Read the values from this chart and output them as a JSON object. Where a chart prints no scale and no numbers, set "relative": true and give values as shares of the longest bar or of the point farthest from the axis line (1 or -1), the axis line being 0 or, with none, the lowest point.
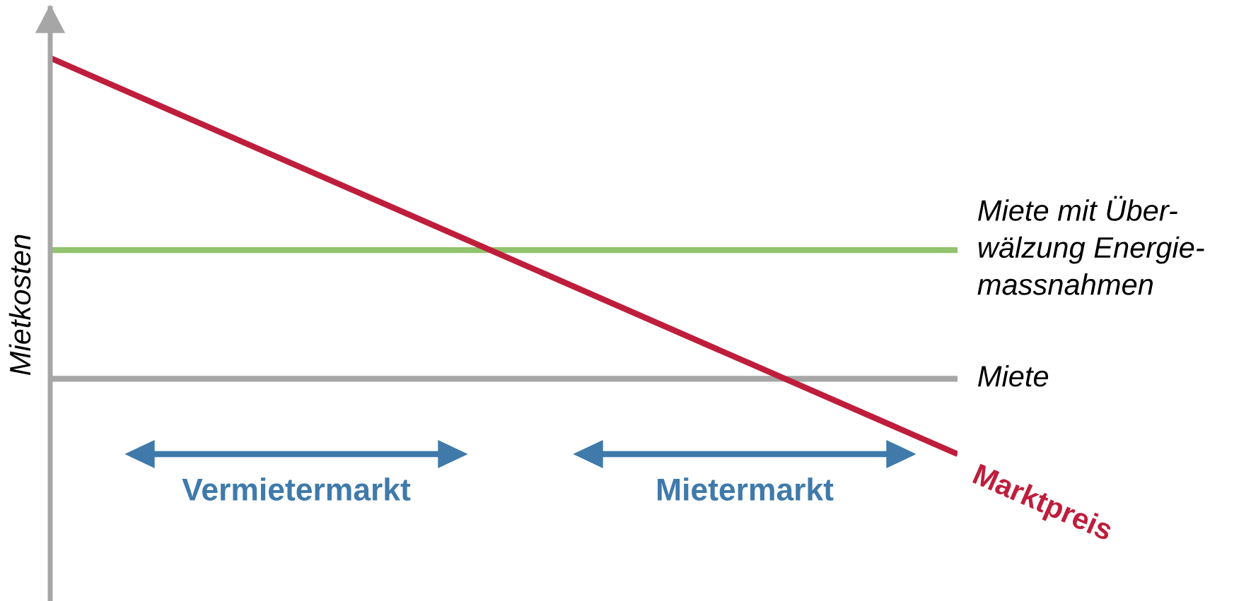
{
  "chart_data": {
    "type": "line",
    "relative": true,
    "ylabel": "Mietkosten",
    "categories": [
      null,
      null
    ],
    "legend": false,
    "marker": "none",
    "line_style": "solid",
    "series": [
      {
        "name": "Miete mit Über-\nwälzung Energie-\nmassnahmen",
        "color": "#92c36e",
        "values": [
          0.515,
          0.515
        ]
      },
      {
        "name": "Miete",
        "color": "#a6a6a6",
        "values": [
          0.19,
          0.19
        ]
      },
      {
        "name": "Marktpreis",
        "color": "#be1e3c",
        "values": [
          1,
          0
        ]
      }
    ],
    "annotations": [
      "Vermietermarkt",
      "Mietermarkt"
    ]
  }
}
